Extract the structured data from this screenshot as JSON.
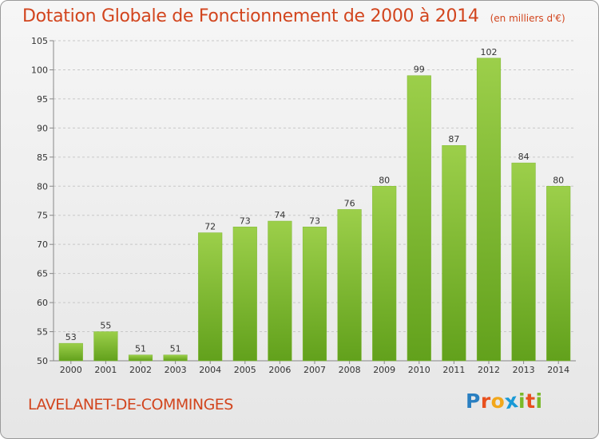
{
  "chart_data": {
    "type": "bar",
    "title": "Dotation Globale de Fonctionnement de 2000 à 2014",
    "subtitle": "(en milliers d'€)",
    "xlabel": "",
    "ylabel": "",
    "categories": [
      "2000",
      "2001",
      "2002",
      "2003",
      "2004",
      "2005",
      "2006",
      "2007",
      "2008",
      "2009",
      "2010",
      "2011",
      "2012",
      "2013",
      "2014"
    ],
    "values": [
      53,
      55,
      51,
      51,
      72,
      73,
      74,
      73,
      76,
      80,
      99,
      87,
      102,
      84,
      80
    ],
    "ylim": [
      50,
      105
    ],
    "yticks": [
      50,
      55,
      60,
      65,
      70,
      75,
      80,
      85,
      90,
      95,
      100,
      105
    ],
    "grid": true,
    "bar_color": "#8cc63f"
  },
  "footer": {
    "commune": "LAVELANET-DE-COMMINGES",
    "logo_letters": [
      {
        "char": "P",
        "color": "#2a7fc1"
      },
      {
        "char": "r",
        "color": "#e8501e"
      },
      {
        "char": "o",
        "color": "#f2a71b"
      },
      {
        "char": "x",
        "color": "#1a9ad6"
      },
      {
        "char": "i",
        "color": "#7ab929"
      },
      {
        "char": "t",
        "color": "#e8501e"
      },
      {
        "char": "i",
        "color": "#7ab929"
      }
    ]
  }
}
